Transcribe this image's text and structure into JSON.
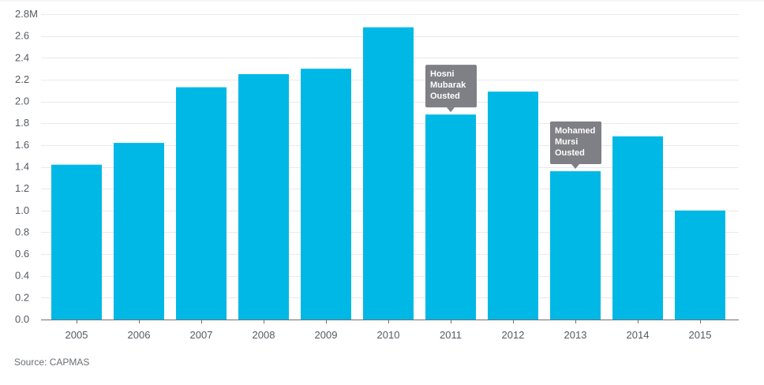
{
  "chart_data": {
    "type": "bar",
    "title": "",
    "xlabel": "",
    "ylabel": "",
    "categories": [
      "2005",
      "2006",
      "2007",
      "2008",
      "2009",
      "2010",
      "2011",
      "2012",
      "2013",
      "2014",
      "2015"
    ],
    "values": [
      1.42,
      1.62,
      2.13,
      2.25,
      2.3,
      2.68,
      1.88,
      2.09,
      1.36,
      1.68,
      1.0
    ],
    "ylim": [
      0,
      2.8
    ],
    "yticks": [
      0,
      0.2,
      0.4,
      0.6,
      0.8,
      1.0,
      1.2,
      1.4,
      1.6,
      1.8,
      2.0,
      2.2,
      2.4,
      2.6,
      2.8
    ],
    "ytick_labels": [
      "0.0",
      "0.2",
      "0.4",
      "0.6",
      "0.8",
      "1.0",
      "1.2",
      "1.4",
      "1.6",
      "1.8",
      "2.0",
      "2.2",
      "2.4",
      "2.6",
      "2.8M"
    ],
    "grid": true,
    "bar_color": "#00b8e6",
    "annotations": [
      {
        "category": "2011",
        "lines": [
          "Hosni",
          "Mubarak",
          "Ousted"
        ],
        "color": "#7f7f86"
      },
      {
        "category": "2013",
        "lines": [
          "Mohamed",
          "Mursi",
          "Ousted"
        ],
        "color": "#7f7f86"
      }
    ]
  },
  "source": "Source: CAPMAS"
}
